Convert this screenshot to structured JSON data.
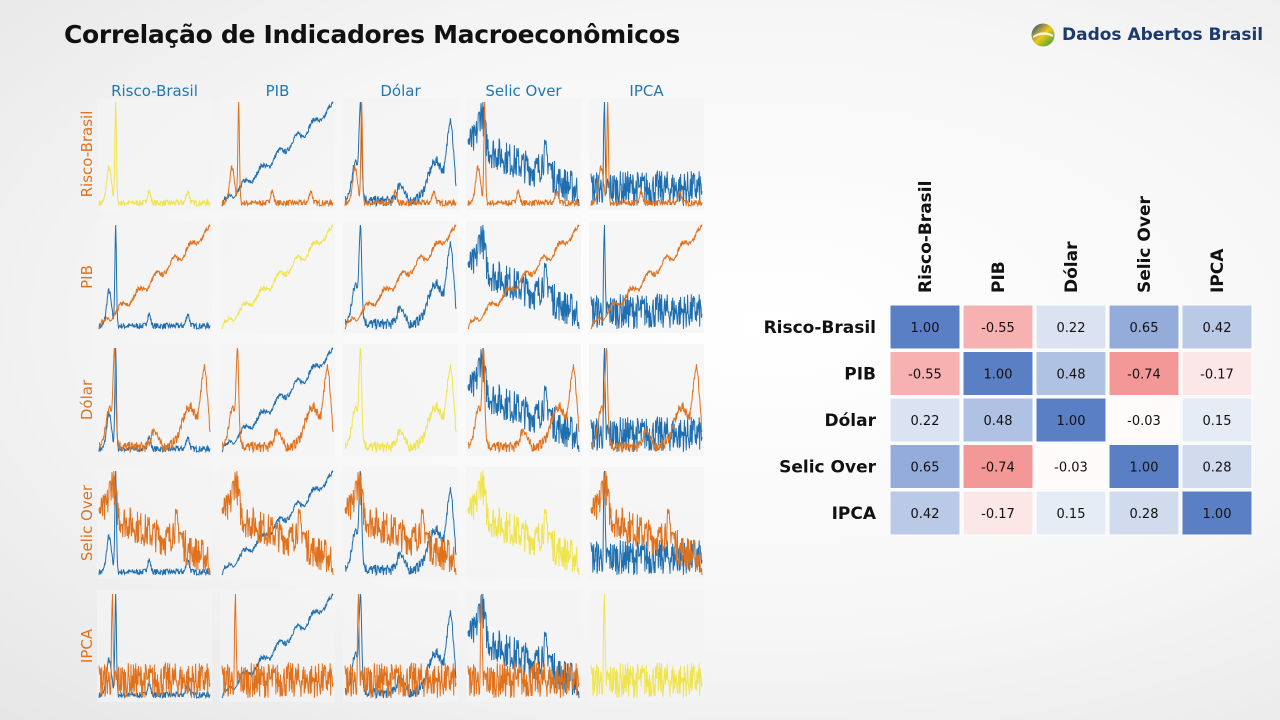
{
  "page": {
    "title": "Correlação de Indicadores Macroeconômicos",
    "brand": "Dados Abertos Brasil"
  },
  "colors": {
    "blue": "#1f6fb0",
    "orange": "#e0721e",
    "yellow": "#f0e44e",
    "label_blue": "#1f78b4",
    "label_orange": "#e0721e",
    "heat_positive": "#5b7fc4",
    "heat_negative": "#f07272"
  },
  "chart_data": [
    {
      "type": "line",
      "subtype": "pair-plot-matrix",
      "columns": [
        "Risco-Brasil",
        "PIB",
        "Dólar",
        "Selic Over",
        "IPCA"
      ],
      "rows": [
        "Risco-Brasil",
        "PIB",
        "Dólar",
        "Selic Over",
        "IPCA"
      ],
      "diagonal_color": "yellow",
      "off_diagonal_colors": [
        "blue",
        "orange"
      ],
      "grid": false,
      "axes_ticks": false
    },
    {
      "type": "heatmap",
      "rows": [
        "Risco-Brasil",
        "PIB",
        "Dólar",
        "Selic Over",
        "IPCA"
      ],
      "columns": [
        "Risco-Brasil",
        "PIB",
        "Dólar",
        "Selic Over",
        "IPCA"
      ],
      "values": [
        [
          1.0,
          -0.55,
          0.22,
          0.65,
          0.42
        ],
        [
          -0.55,
          1.0,
          0.48,
          -0.74,
          -0.17
        ],
        [
          0.22,
          0.48,
          1.0,
          -0.03,
          0.15
        ],
        [
          0.65,
          -0.74,
          -0.03,
          1.0,
          0.28
        ],
        [
          0.42,
          -0.17,
          0.15,
          0.28,
          1.0
        ]
      ],
      "value_format": "0.00",
      "range": [
        -1,
        1
      ]
    }
  ]
}
